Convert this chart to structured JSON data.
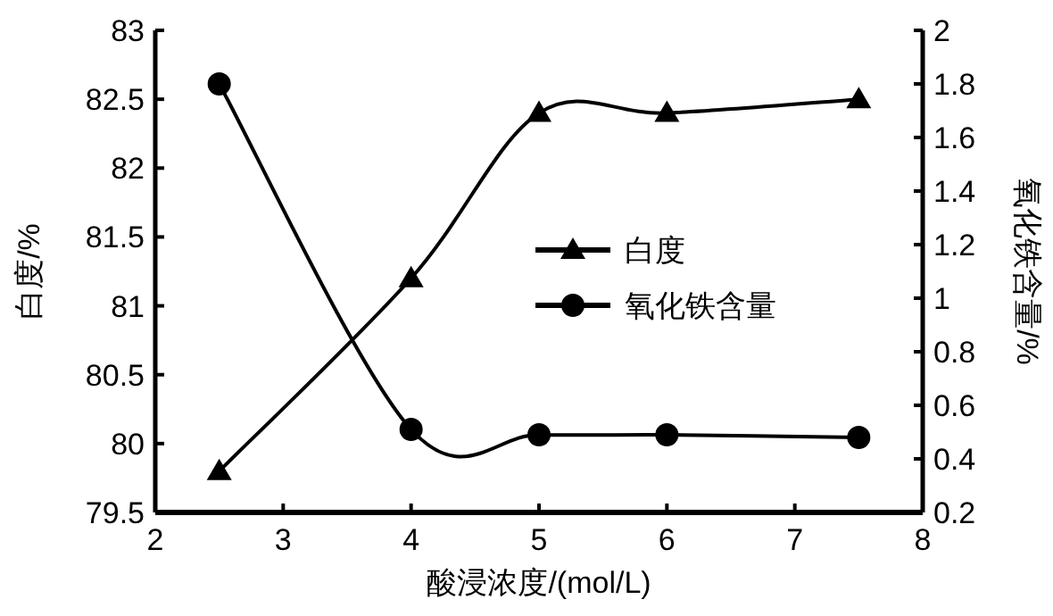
{
  "chart_data": {
    "type": "line",
    "xlabel": "酸浸浓度/(mol/L)",
    "ylabel": "白度/%",
    "y2label": "氧化铁含量/%",
    "x": [
      2.5,
      4,
      5,
      6,
      7.5
    ],
    "series": [
      {
        "name": "白度",
        "color": "#000000",
        "marker": "triangle",
        "values": [
          79.8,
          81.2,
          82.4,
          82.4,
          82.5
        ]
      },
      {
        "name": "氧化铁含量",
        "color": "#000000",
        "marker": "circle",
        "axis": "y2",
        "values": [
          1.8,
          0.51,
          0.49,
          0.49,
          0.48
        ]
      }
    ],
    "xlim": [
      2,
      8
    ],
    "xticks": [
      2,
      3,
      4,
      5,
      6,
      7,
      8
    ],
    "ylim": [
      79.5,
      83
    ],
    "yticks": [
      79.5,
      80,
      80.5,
      81,
      81.5,
      82,
      82.5,
      83
    ],
    "y2lim": [
      0.2,
      2
    ],
    "y2ticks": [
      0.2,
      0.4,
      0.6,
      0.8,
      1,
      1.2,
      1.4,
      1.6,
      1.8,
      2
    ],
    "grid": false,
    "legend": "right",
    "line_style": "solid"
  }
}
